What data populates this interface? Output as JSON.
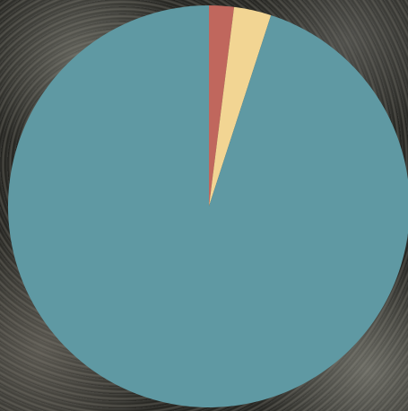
{
  "chart_data": {
    "type": "pie",
    "values": [
      2,
      3,
      95
    ],
    "colors": [
      "#c0675d",
      "#f2d593",
      "#5f99a3"
    ]
  }
}
